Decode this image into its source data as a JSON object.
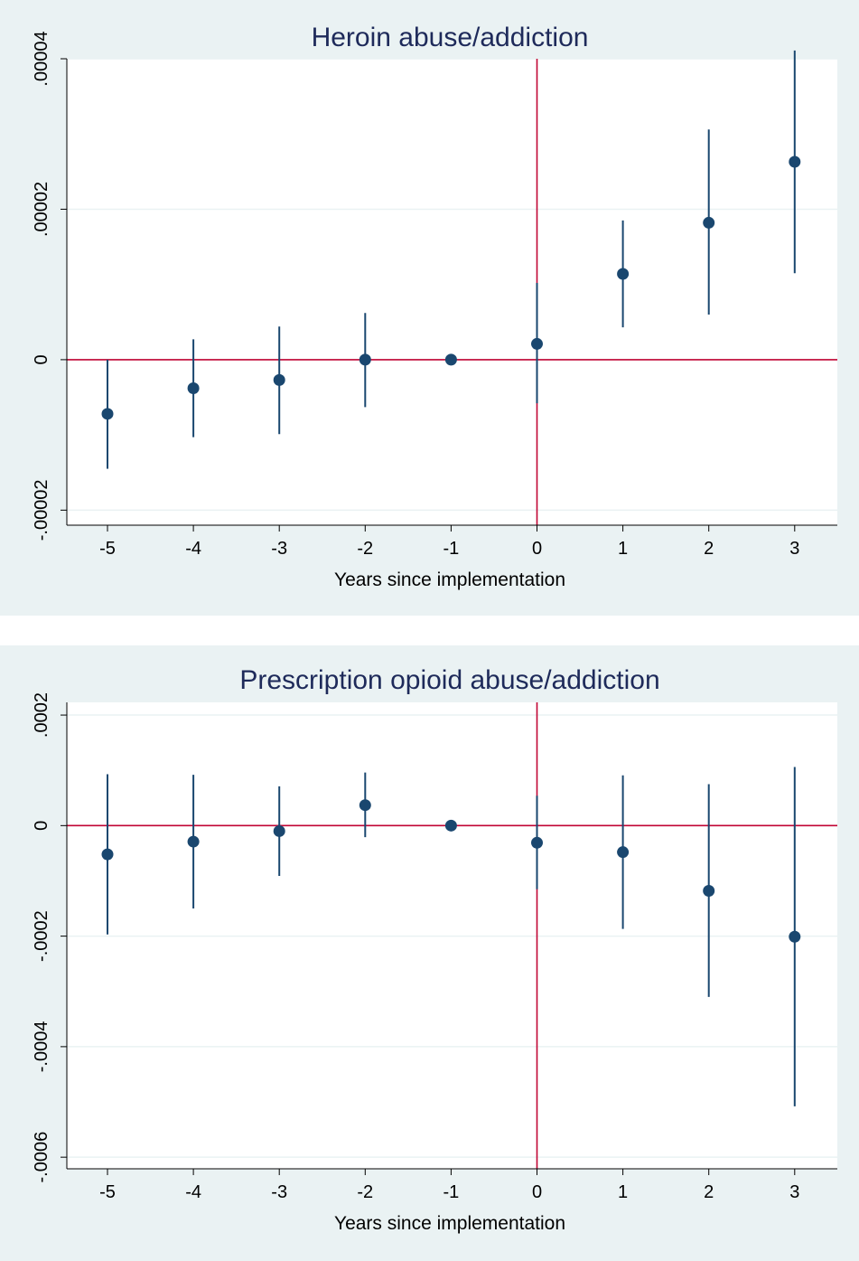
{
  "colors": {
    "panel_bg": "#eaf2f3",
    "plot_bg": "#ffffff",
    "grid": "#eaf2f3",
    "axis": "#000000",
    "marker": "#1a476f",
    "ref_line": "#c10534",
    "title": "#1e2a5a"
  },
  "chart_data": [
    {
      "type": "scatter",
      "title": "Heroin abuse/addiction",
      "xlabel": "Years since implementation",
      "ylabel": "",
      "xlim": [
        -5.5,
        3.5
      ],
      "ylim": [
        -2.2e-05,
        4e-05
      ],
      "x_ticks": [
        -5,
        -4,
        -3,
        -2,
        -1,
        0,
        1,
        2,
        3
      ],
      "x_tick_labels": [
        "-5",
        "-4",
        "-3",
        "-2",
        "-1",
        "0",
        "1",
        "2",
        "3"
      ],
      "y_ticks": [
        -2e-05,
        0,
        2e-05,
        4e-05
      ],
      "y_tick_labels": [
        "-.00002",
        "0",
        ".00002",
        ".00004"
      ],
      "grid": true,
      "ref_lines": {
        "x": 0,
        "y": 0
      },
      "points": [
        {
          "x": -5,
          "y": -7.2e-06,
          "lo": -1.45e-05,
          "hi": 0.0
        },
        {
          "x": -4,
          "y": -3.8e-06,
          "lo": -1.03e-05,
          "hi": 2.7e-06
        },
        {
          "x": -3,
          "y": -2.7e-06,
          "lo": -9.9e-06,
          "hi": 4.4e-06
        },
        {
          "x": -2,
          "y": 0.0,
          "lo": -6.3e-06,
          "hi": 6.2e-06
        },
        {
          "x": -1,
          "y": 0.0,
          "lo": 0.0,
          "hi": 0.0
        },
        {
          "x": 0,
          "y": 2.1e-06,
          "lo": -5.8e-06,
          "hi": 1.02e-05
        },
        {
          "x": 1,
          "y": 1.14e-05,
          "lo": 4.3e-06,
          "hi": 1.85e-05
        },
        {
          "x": 2,
          "y": 1.82e-05,
          "lo": 6e-06,
          "hi": 3.06e-05
        },
        {
          "x": 3,
          "y": 2.63e-05,
          "lo": 1.15e-05,
          "hi": 4.11e-05
        }
      ]
    },
    {
      "type": "scatter",
      "title": "Prescription opioid abuse/addiction",
      "xlabel": "Years since implementation",
      "ylabel": "",
      "xlim": [
        -5.5,
        3.5
      ],
      "ylim": [
        -0.000621,
        0.000223
      ],
      "x_ticks": [
        -5,
        -4,
        -3,
        -2,
        -1,
        0,
        1,
        2,
        3
      ],
      "x_tick_labels": [
        "-5",
        "-4",
        "-3",
        "-2",
        "-1",
        "0",
        "1",
        "2",
        "3"
      ],
      "y_ticks": [
        -0.0006,
        -0.0004,
        -0.0002,
        0,
        0.0002
      ],
      "y_tick_labels": [
        "-.0006",
        "-.0004",
        "-.0002",
        "0",
        ".0002"
      ],
      "grid": true,
      "ref_lines": {
        "x": 0,
        "y": 0
      },
      "points": [
        {
          "x": -5,
          "y": -5.2e-05,
          "lo": -0.000197,
          "hi": 9.3e-05
        },
        {
          "x": -4,
          "y": -2.9e-05,
          "lo": -0.00015,
          "hi": 9.2e-05
        },
        {
          "x": -3,
          "y": -1e-05,
          "lo": -9.1e-05,
          "hi": 7.1e-05
        },
        {
          "x": -2,
          "y": 3.7e-05,
          "lo": -2.1e-05,
          "hi": 9.6e-05
        },
        {
          "x": -1,
          "y": 0.0,
          "lo": 0.0,
          "hi": 0.0
        },
        {
          "x": 0,
          "y": -3.1e-05,
          "lo": -0.000115,
          "hi": 5.4e-05
        },
        {
          "x": 1,
          "y": -4.8e-05,
          "lo": -0.000187,
          "hi": 9.1e-05
        },
        {
          "x": 2,
          "y": -0.000118,
          "lo": -0.00031,
          "hi": 7.5e-05
        },
        {
          "x": 3,
          "y": -0.000201,
          "lo": -0.000508,
          "hi": 0.000106
        }
      ]
    }
  ]
}
